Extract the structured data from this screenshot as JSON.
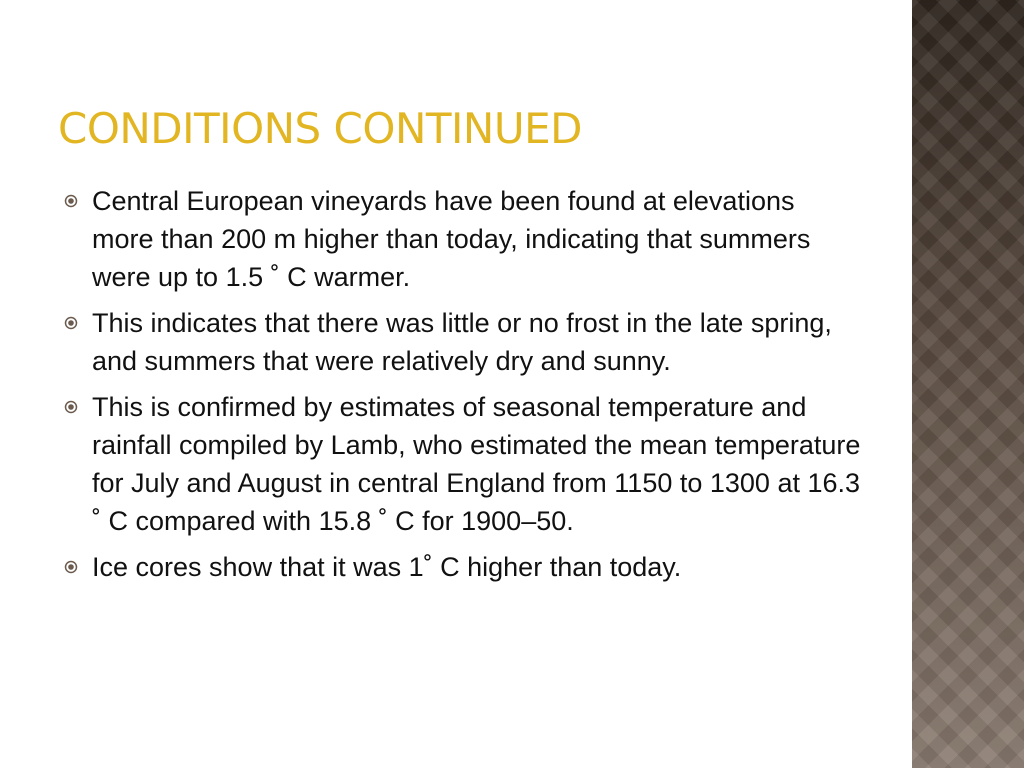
{
  "slide": {
    "title": "Conditions Continued",
    "bullets": [
      "Central European vineyards have been found at elevations more than 200 m higher than today, indicating that summers were up to 1.5 ˚ C warmer.",
      "This indicates that there was little or no frost in the late spring, and summers that were relatively dry and sunny.",
      "This is confirmed by estimates of seasonal temperature and rainfall compiled by Lamb, who estimated the mean temperature for July and August in central England from 1150 to 1300 at 16.3 ˚ C compared with 15.8 ˚ C for 1900–50.",
      "Ice cores show that it was 1˚ C higher than today."
    ]
  }
}
